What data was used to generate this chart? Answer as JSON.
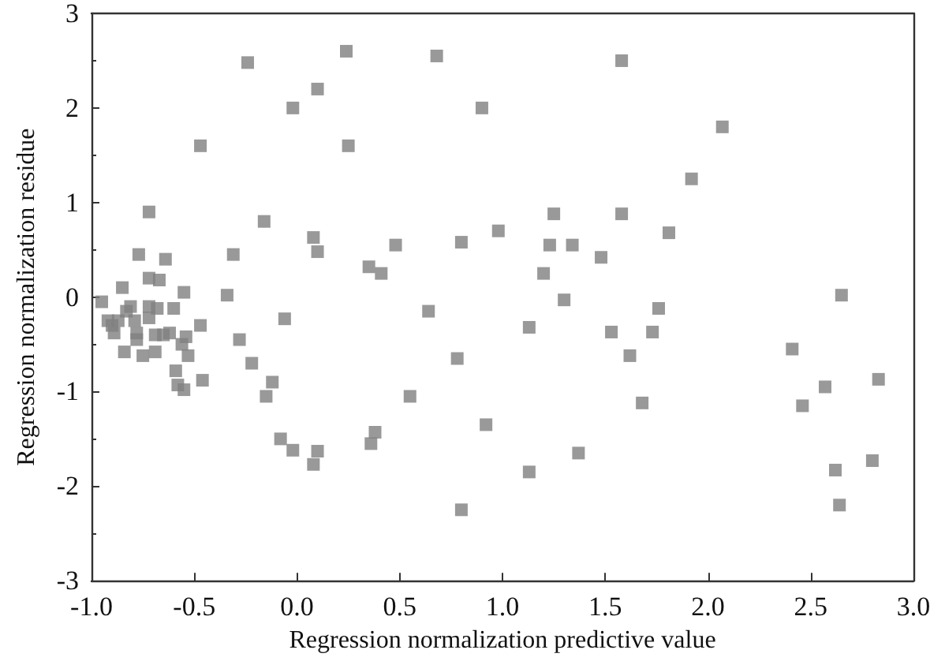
{
  "chart_data": {
    "type": "scatter",
    "xlabel": "Regression normalization predictive value",
    "ylabel": "Regression normalization residue",
    "xlim": [
      -1,
      3
    ],
    "ylim": [
      -3,
      3
    ],
    "xticks": [
      {
        "value": -1,
        "label": "-1.0"
      },
      {
        "value": -0.5,
        "label": "-0.5"
      },
      {
        "value": 0,
        "label": "0.0"
      },
      {
        "value": 0.5,
        "label": "0.5"
      },
      {
        "value": 1,
        "label": "1.0"
      },
      {
        "value": 1.5,
        "label": "1.5"
      },
      {
        "value": 2,
        "label": "2.0"
      },
      {
        "value": 2.5,
        "label": "2.5"
      },
      {
        "value": 3,
        "label": "3.0"
      }
    ],
    "yticks": [
      -3,
      -2,
      -1,
      0,
      1,
      2,
      3
    ],
    "grid": false,
    "marker": "square",
    "series": [
      {
        "color": "#808080",
        "x": [
          -0.95,
          -0.92,
          -0.9,
          -0.89,
          -0.87,
          -0.85,
          -0.84,
          -0.83,
          -0.81,
          -0.79,
          -0.78,
          -0.78,
          -0.77,
          -0.75,
          -0.72,
          -0.72,
          -0.72,
          -0.72,
          -0.69,
          -0.69,
          -0.68,
          -0.67,
          -0.65,
          -0.64,
          -0.62,
          -0.6,
          -0.59,
          -0.58,
          -0.56,
          -0.55,
          -0.55,
          -0.54,
          -0.53,
          -0.47,
          -0.47,
          -0.46,
          -0.34,
          -0.31,
          -0.28,
          -0.24,
          -0.22,
          -0.16,
          -0.15,
          -0.12,
          -0.06,
          -0.08,
          -0.02,
          -0.02,
          0.08,
          0.08,
          0.1,
          0.1,
          0.1,
          0.24,
          0.25,
          0.35,
          0.36,
          0.38,
          0.41,
          0.48,
          0.55,
          0.64,
          0.68,
          0.78,
          0.8,
          0.8,
          0.9,
          0.92,
          0.98,
          1.13,
          1.13,
          1.2,
          1.23,
          1.25,
          1.3,
          1.34,
          1.37,
          1.48,
          1.53,
          1.58,
          1.58,
          1.62,
          1.68,
          1.73,
          1.76,
          1.81,
          1.92,
          2.07,
          2.41,
          2.46,
          2.57,
          2.62,
          2.64,
          2.65,
          2.8,
          2.83
        ],
        "values": [
          -0.05,
          -0.25,
          -0.3,
          -0.38,
          -0.25,
          0.1,
          -0.58,
          -0.15,
          -0.1,
          -0.25,
          -0.38,
          -0.45,
          0.45,
          -0.62,
          0.9,
          0.2,
          -0.1,
          -0.22,
          -0.58,
          -0.4,
          -0.12,
          0.18,
          -0.4,
          0.4,
          -0.38,
          -0.12,
          -0.78,
          -0.93,
          -0.5,
          0.05,
          -0.98,
          -0.42,
          -0.62,
          1.6,
          -0.3,
          -0.88,
          0.02,
          0.45,
          -0.45,
          2.48,
          -0.7,
          0.8,
          -1.05,
          -0.9,
          -0.23,
          -1.5,
          2.0,
          -1.62,
          0.63,
          -1.77,
          2.2,
          0.48,
          -1.63,
          2.6,
          1.6,
          0.32,
          -1.55,
          -1.43,
          0.25,
          0.55,
          -1.05,
          -0.15,
          2.55,
          -0.65,
          0.58,
          -2.25,
          2.0,
          -1.35,
          0.7,
          -0.32,
          -1.85,
          0.25,
          0.55,
          0.88,
          -0.03,
          0.55,
          -1.65,
          0.42,
          -0.37,
          2.5,
          0.88,
          -0.62,
          -1.12,
          -0.37,
          -0.12,
          0.68,
          1.25,
          1.8,
          -0.55,
          -1.15,
          -0.95,
          -1.83,
          -2.2,
          0.02,
          -1.73,
          -0.87
        ]
      }
    ]
  }
}
